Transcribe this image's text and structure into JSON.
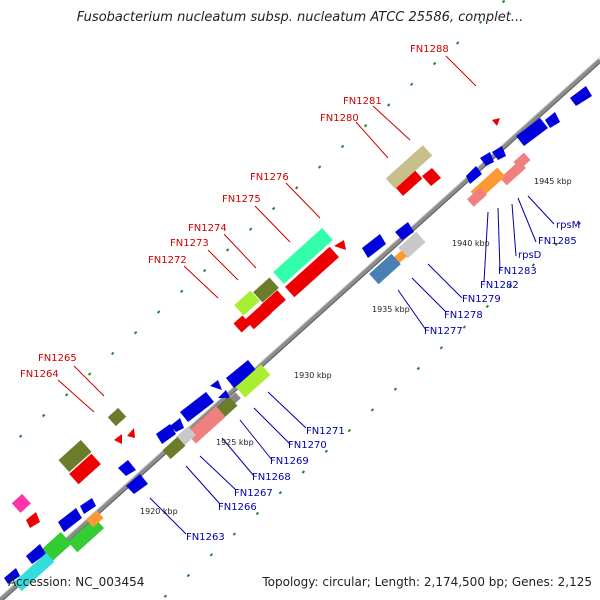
{
  "title": "Fusobacterium nucleatum subsp. nucleatum ATCC 25586, complet...",
  "footer": {
    "accession": "Accession: NC_003454",
    "summary": "Topology: circular; Length: 2,174,500 bp; Genes: 2,125"
  },
  "ticks": [
    "1920 kbp",
    "1925 kbp",
    "1930 kbp",
    "1935 kbp",
    "1940 kbp",
    "1945 kbp"
  ],
  "labels_forward": [
    "FN1264",
    "FN1265",
    "FN1272",
    "FN1273",
    "FN1274",
    "FN1275",
    "FN1276",
    "FN1280",
    "FN1281",
    "FN1288"
  ],
  "labels_reverse": [
    "FN1263",
    "FN1266",
    "FN1267",
    "FN1268",
    "FN1269",
    "FN1270",
    "FN1271",
    "FN1277",
    "FN1278",
    "FN1279",
    "FN1282",
    "FN1283",
    "rpsD",
    "FN1285",
    "rpsM"
  ],
  "colors": {
    "backbone": "#8c8c8c",
    "forward_label": "#cc0000",
    "reverse_label": "#0000aa",
    "gene_red": "#ee0000",
    "gene_blue": "#0000dd",
    "gene_olive": "#6b7d2a",
    "gene_khaki": "#c8c08a",
    "gene_salmon": "#f08080",
    "gene_green": "#33cc33",
    "gene_aqua": "#33ffaa",
    "gene_grey": "#c8c8c8",
    "gene_cyan": "#33dddd",
    "gene_magenta": "#ff33aa",
    "gene_orange": "#ff9933",
    "gene_steel": "#4a7fb5",
    "gene_lime": "#aaee33",
    "dots": "#228822"
  }
}
